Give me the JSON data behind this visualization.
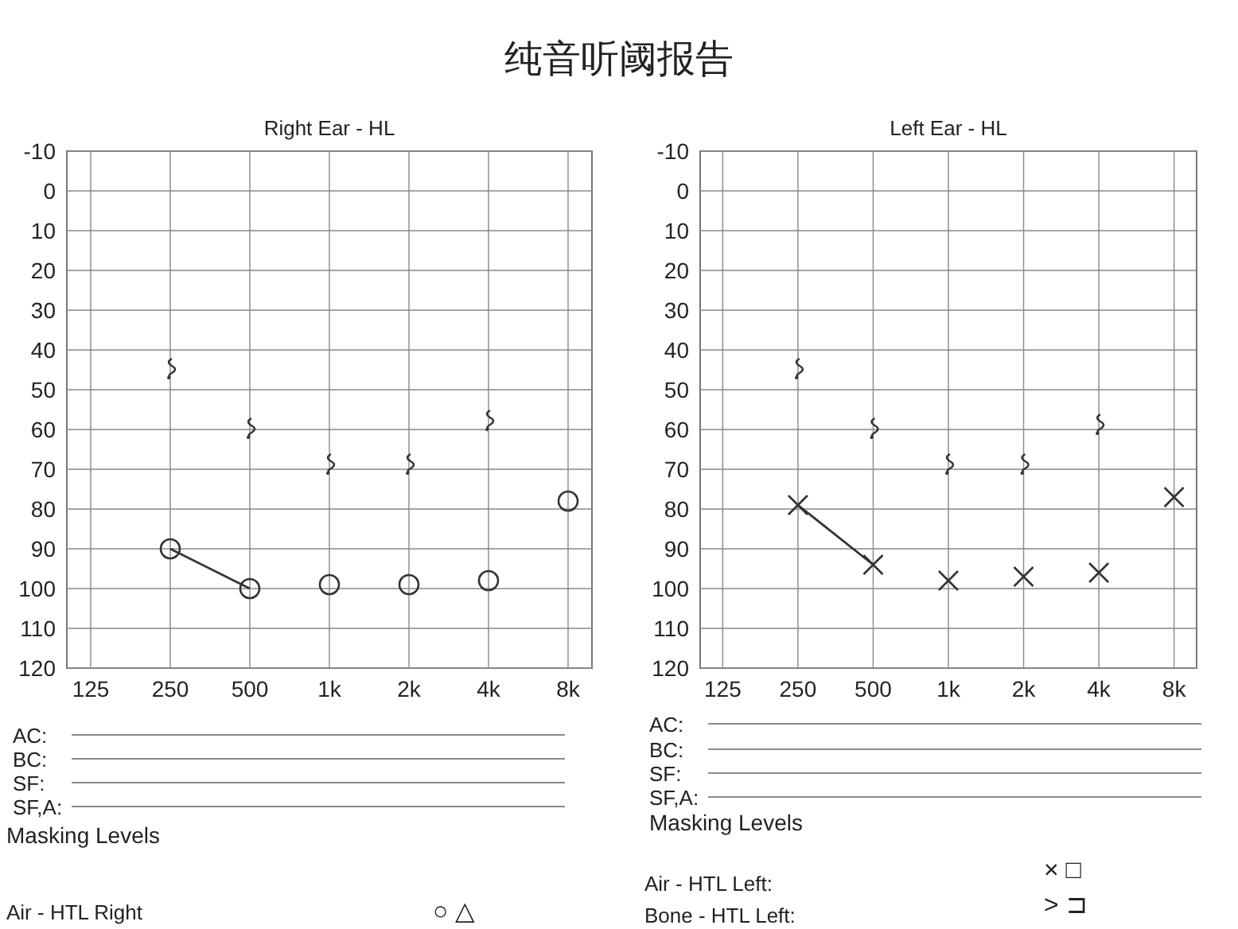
{
  "chart_data": [
    {
      "type": "scatter",
      "title": "Right Ear - HL",
      "categories": [
        "125",
        "250",
        "500",
        "1k",
        "2k",
        "4k",
        "8k"
      ],
      "ylim": [
        120,
        -10
      ],
      "yticks": [
        -10,
        0,
        10,
        20,
        30,
        40,
        50,
        60,
        70,
        80,
        90,
        100,
        110,
        120
      ],
      "grid": true,
      "series": [
        {
          "type": "line",
          "color": "#333333",
          "marker": "none",
          "values": [
            null,
            90,
            100,
            null,
            null,
            null,
            null
          ]
        },
        {
          "type": "scatter",
          "color": "#333333",
          "marker": "circle",
          "values": [
            null,
            90,
            100,
            99,
            99,
            98,
            78
          ]
        },
        {
          "color": "#333333",
          "values": [
            null,
            45,
            60,
            69,
            69,
            58,
            null
          ]
        }
      ],
      "annotations": [
        "纯音听阈报告",
        "AC:",
        "BC:",
        "SF:",
        "SF,A:",
        "Masking Levels",
        "Air - HTL Right",
        "○ △"
      ]
    },
    {
      "type": "scatter",
      "title": "Left Ear - HL",
      "categories": [
        "125",
        "250",
        "500",
        "1k",
        "2k",
        "4k",
        "8k"
      ],
      "ylim": [
        120,
        -10
      ],
      "yticks": [
        -10,
        0,
        10,
        20,
        30,
        40,
        50,
        60,
        70,
        80,
        90,
        100,
        110,
        120
      ],
      "grid": true,
      "series": [
        {
          "type": "line",
          "color": "#333333",
          "marker": "none",
          "values": [
            null,
            79,
            94,
            null,
            null,
            null,
            null
          ]
        },
        {
          "type": "scatter",
          "color": "#333333",
          "marker": "cross",
          "values": [
            null,
            79,
            94,
            98,
            97,
            96,
            77
          ]
        },
        {
          "color": "#333333",
          "values": [
            null,
            45,
            60,
            69,
            69,
            59,
            null
          ]
        }
      ],
      "annotations": [
        "AC:",
        "BC:",
        "SF:",
        "SF,A:",
        "Masking Levels",
        "Air - HTL Left:",
        "Bone - HTL Left:",
        "× □",
        "> ⊐"
      ]
    }
  ]
}
